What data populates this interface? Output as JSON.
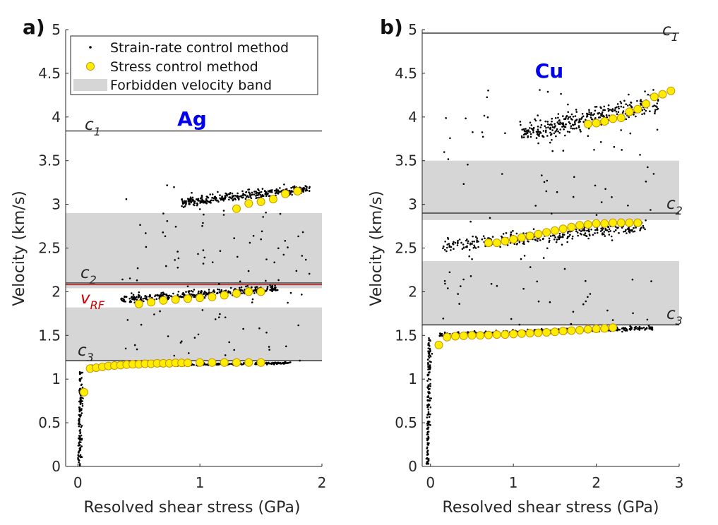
{
  "chart_data": [
    {
      "type": "scatter",
      "panel": "a)",
      "title": "Ag",
      "xlabel": "Resolved shear stress (GPa)",
      "ylabel": "Velocity (km/s)",
      "xlim": [
        -0.1,
        2
      ],
      "ylim": [
        0,
        5
      ],
      "xticks": [
        "0",
        "1",
        "2"
      ],
      "yticks": [
        "0",
        "0.5",
        "1",
        "1.5",
        "2",
        "2.5",
        "3",
        "3.5",
        "4",
        "4.5",
        "5"
      ],
      "forbidden_bands": [
        [
          1.21,
          1.82
        ],
        [
          2.04,
          2.9
        ]
      ],
      "reference_lines": [
        {
          "name": "c",
          "sub": "1",
          "value": 3.84,
          "color": "#222222"
        },
        {
          "name": "c",
          "sub": "2",
          "value": 2.1,
          "color": "#222222"
        },
        {
          "name": "v",
          "sub": "RF",
          "value": 2.08,
          "color": "#cc0000"
        },
        {
          "name": "c",
          "sub": "3",
          "value": 1.21,
          "color": "#222222"
        }
      ],
      "stress_control": {
        "name": "Stress control method",
        "x": [
          0.05,
          0.1,
          0.15,
          0.2,
          0.25,
          0.3,
          0.35,
          0.4,
          0.45,
          0.5,
          0.55,
          0.6,
          0.65,
          0.7,
          0.75,
          0.8,
          0.85,
          0.9,
          1.0,
          1.1,
          1.2,
          1.3,
          1.4,
          1.5,
          0.5,
          0.6,
          0.7,
          0.8,
          0.9,
          1.0,
          1.1,
          1.2,
          1.3,
          1.4,
          1.5,
          1.3,
          1.4,
          1.5,
          1.6,
          1.7,
          1.8
        ],
        "y": [
          0.85,
          1.12,
          1.13,
          1.14,
          1.15,
          1.155,
          1.16,
          1.165,
          1.17,
          1.17,
          1.175,
          1.175,
          1.18,
          1.18,
          1.18,
          1.185,
          1.185,
          1.185,
          1.19,
          1.19,
          1.19,
          1.19,
          1.19,
          1.19,
          1.86,
          1.88,
          1.9,
          1.91,
          1.92,
          1.93,
          1.94,
          1.96,
          1.98,
          2.0,
          2.0,
          2.95,
          3.01,
          3.03,
          3.06,
          3.12,
          3.15
        ]
      },
      "strain_rate_control": {
        "name": "Strain-rate control method",
        "clusters": [
          {
            "x": [
              0.0,
              0.1
            ],
            "y": [
              0,
              1.1
            ],
            "description": "acceleration ramp"
          },
          {
            "x": [
              0.1,
              1.75
            ],
            "y": [
              1.12,
              1.2
            ],
            "description": "branch near c3"
          },
          {
            "x": [
              0.35,
              1.65
            ],
            "y": [
              1.8,
              2.1
            ],
            "description": "branch below c2"
          },
          {
            "x": [
              0.85,
              1.9
            ],
            "y": [
              2.9,
              3.25
            ],
            "description": "supersonic branch"
          }
        ]
      }
    },
    {
      "type": "scatter",
      "panel": "b)",
      "title": "Cu",
      "xlabel": "Resolved shear stress (GPa)",
      "ylabel": "Velocity (km/s)",
      "xlim": [
        -0.1,
        3
      ],
      "ylim": [
        0,
        5
      ],
      "xticks": [
        "0",
        "1",
        "2",
        "3"
      ],
      "yticks": [
        "0",
        "0.5",
        "1",
        "1.5",
        "2",
        "2.5",
        "3",
        "3.5",
        "4",
        "4.5",
        "5"
      ],
      "forbidden_bands": [
        [
          1.62,
          2.35
        ],
        [
          2.82,
          3.5
        ]
      ],
      "reference_lines": [
        {
          "name": "c",
          "sub": "1",
          "value": 4.96,
          "color": "#222222"
        },
        {
          "name": "c",
          "sub": "2",
          "value": 2.9,
          "color": "#222222"
        },
        {
          "name": "c",
          "sub": "3",
          "value": 1.62,
          "color": "#222222"
        }
      ],
      "stress_control": {
        "name": "Stress control method",
        "x": [
          0.1,
          0.2,
          0.3,
          0.4,
          0.5,
          0.6,
          0.7,
          0.8,
          0.9,
          1.0,
          1.1,
          1.2,
          1.3,
          1.4,
          1.5,
          1.6,
          1.7,
          1.8,
          1.9,
          2.0,
          2.1,
          2.2,
          0.7,
          0.8,
          0.9,
          1.0,
          1.1,
          1.2,
          1.3,
          1.4,
          1.5,
          1.6,
          1.7,
          1.8,
          1.9,
          2.0,
          2.1,
          2.2,
          2.3,
          2.4,
          2.5,
          1.9,
          2.0,
          2.1,
          2.2,
          2.3,
          2.4,
          2.5,
          2.6,
          2.7,
          2.8,
          2.9
        ],
        "y": [
          1.39,
          1.48,
          1.49,
          1.495,
          1.5,
          1.5,
          1.505,
          1.51,
          1.51,
          1.515,
          1.52,
          1.525,
          1.53,
          1.535,
          1.54,
          1.55,
          1.555,
          1.56,
          1.57,
          1.575,
          1.58,
          1.59,
          2.56,
          2.56,
          2.58,
          2.6,
          2.62,
          2.64,
          2.66,
          2.68,
          2.7,
          2.72,
          2.74,
          2.76,
          2.77,
          2.78,
          2.78,
          2.79,
          2.79,
          2.79,
          2.79,
          3.92,
          3.93,
          3.95,
          3.98,
          3.99,
          4.06,
          4.09,
          4.15,
          4.23,
          4.26,
          4.3
        ]
      },
      "strain_rate_control": {
        "name": "Strain-rate control method",
        "clusters": [
          {
            "x": [
              -0.05,
              0.1
            ],
            "y": [
              0,
              1.5
            ],
            "description": "acceleration ramp"
          },
          {
            "x": [
              0.1,
              2.7
            ],
            "y": [
              1.45,
              1.62
            ],
            "description": "branch near c3"
          },
          {
            "x": [
              0.15,
              2.6
            ],
            "y": [
              2.35,
              2.85
            ],
            "description": "branch below c2"
          },
          {
            "x": [
              1.1,
              2.75
            ],
            "y": [
              3.5,
              4.35
            ],
            "description": "supersonic branch"
          }
        ]
      }
    }
  ],
  "legend": {
    "entries": [
      "Strain-rate control method",
      "Stress control method",
      "Forbidden velocity band"
    ]
  },
  "colors": {
    "stress_fill": "#ffee00",
    "stress_edge": "#c89600",
    "band": "#d6d6d6",
    "metal_title": "#0000ee",
    "vrf": "#cc0000"
  }
}
